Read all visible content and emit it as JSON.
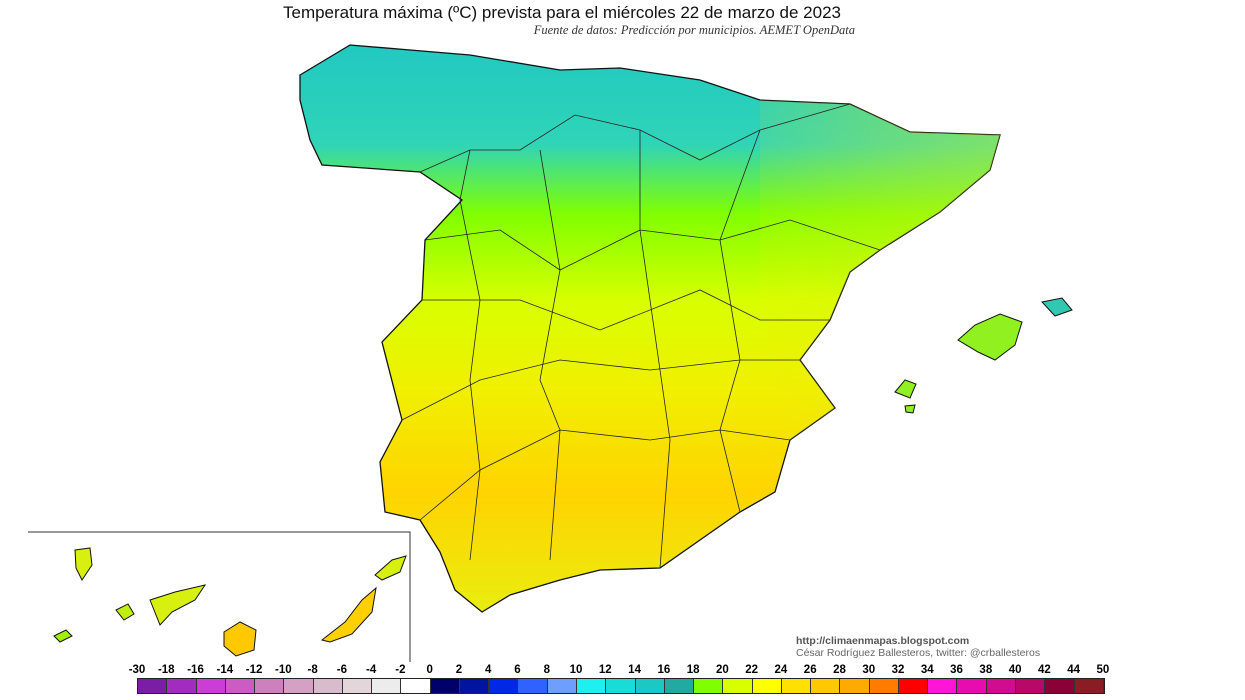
{
  "title": "Temperatura máxima (ºC) prevista para el miércoles 22 de marzo de 2023",
  "subtitle": "Fuente de datos: Predicción por municipios. AEMET OpenData",
  "credits": {
    "url": "http://climaenmapas.blogspot.com",
    "author": "César Rodríguez Ballesteros, twitter: @crballesteros"
  },
  "map": {
    "variable": "maximum temperature",
    "dominant_colors": {
      "north_coast": "#20c8c0",
      "north_plateau": "#80ff00",
      "center": "#e8ff00",
      "south": "#ffd000"
    }
  },
  "colorbar": {
    "labels": [
      "-30",
      "-18",
      "-16",
      "-14",
      "-12",
      "-10",
      "-8",
      "-6",
      "-4",
      "-2",
      "0",
      "2",
      "4",
      "6",
      "8",
      "10",
      "12",
      "14",
      "16",
      "18",
      "20",
      "22",
      "24",
      "26",
      "28",
      "30",
      "32",
      "34",
      "36",
      "38",
      "40",
      "42",
      "44",
      "50"
    ],
    "colors": [
      "#7a1ea6",
      "#a22cc0",
      "#cc3cd6",
      "#cc5cc4",
      "#cc80bc",
      "#d4a0c4",
      "#d8bccc",
      "#e2d6da",
      "#ececec",
      "#ffffff",
      "#00006a",
      "#0014a0",
      "#0028e6",
      "#2f62ff",
      "#6e9eff",
      "#1ef0f0",
      "#18dcd8",
      "#1cc8c4",
      "#20aaa0",
      "#80ff00",
      "#d8ff00",
      "#ffff00",
      "#ffe000",
      "#ffc800",
      "#ffaa00",
      "#ff7c00",
      "#ff0000",
      "#ff14d8",
      "#e80cb0",
      "#d00c90",
      "#b80868",
      "#8c0038",
      "#8c1c24"
    ]
  }
}
